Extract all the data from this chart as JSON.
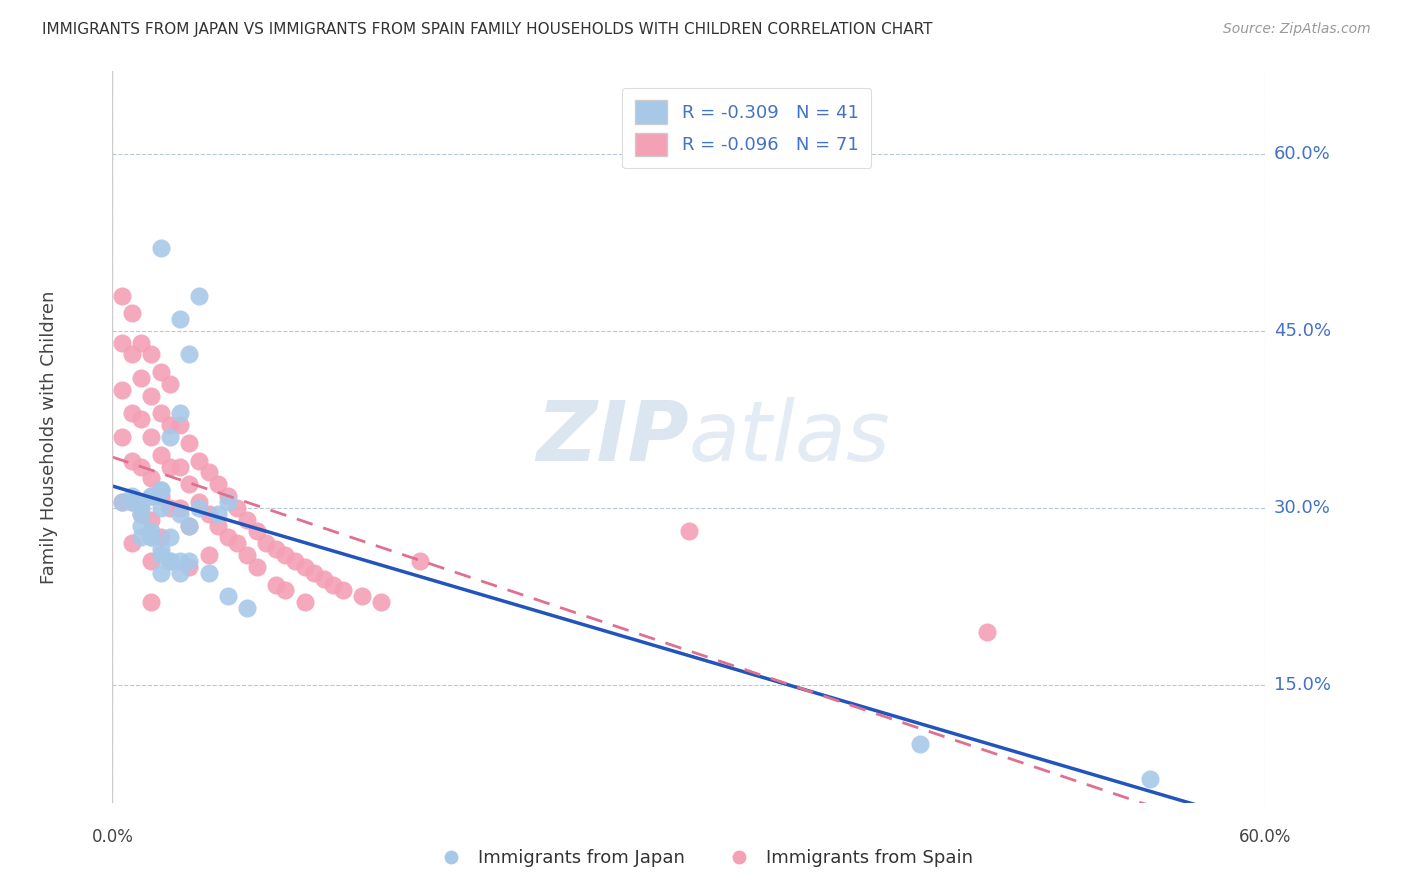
{
  "title": "IMMIGRANTS FROM JAPAN VS IMMIGRANTS FROM SPAIN FAMILY HOUSEHOLDS WITH CHILDREN CORRELATION CHART",
  "source": "Source: ZipAtlas.com",
  "ylabel": "Family Households with Children",
  "y_ticks_right": [
    "60.0%",
    "45.0%",
    "30.0%",
    "15.0%"
  ],
  "y_ticks_right_vals": [
    0.6,
    0.45,
    0.3,
    0.15
  ],
  "xlim": [
    0.0,
    0.6
  ],
  "ylim": [
    0.05,
    0.67
  ],
  "R_japan": -0.309,
  "N_japan": 41,
  "R_spain": -0.096,
  "N_spain": 71,
  "color_japan": "#a8c8e8",
  "color_spain": "#f4a0b5",
  "color_japan_line": "#2255bb",
  "color_spain_line": "#e07090",
  "background_color": "#ffffff",
  "japan_x": [
    0.015,
    0.025,
    0.035,
    0.04,
    0.045,
    0.005,
    0.01,
    0.02,
    0.025,
    0.035,
    0.015,
    0.02,
    0.03,
    0.04,
    0.045,
    0.055,
    0.06,
    0.025,
    0.03,
    0.035,
    0.015,
    0.02,
    0.025,
    0.03,
    0.04,
    0.05,
    0.06,
    0.07,
    0.02,
    0.025,
    0.01,
    0.015,
    0.015,
    0.02,
    0.025,
    0.03,
    0.035,
    0.42,
    0.54,
    0.025,
    0.035
  ],
  "japan_y": [
    0.305,
    0.52,
    0.46,
    0.43,
    0.48,
    0.305,
    0.305,
    0.31,
    0.3,
    0.295,
    0.275,
    0.28,
    0.275,
    0.285,
    0.3,
    0.295,
    0.305,
    0.315,
    0.36,
    0.38,
    0.285,
    0.275,
    0.26,
    0.255,
    0.255,
    0.245,
    0.225,
    0.215,
    0.31,
    0.315,
    0.31,
    0.3,
    0.295,
    0.275,
    0.265,
    0.255,
    0.245,
    0.1,
    0.07,
    0.245,
    0.255
  ],
  "spain_x": [
    0.005,
    0.005,
    0.005,
    0.005,
    0.01,
    0.01,
    0.01,
    0.01,
    0.01,
    0.01,
    0.015,
    0.015,
    0.015,
    0.015,
    0.015,
    0.02,
    0.02,
    0.02,
    0.02,
    0.02,
    0.02,
    0.02,
    0.025,
    0.025,
    0.025,
    0.025,
    0.025,
    0.03,
    0.03,
    0.03,
    0.03,
    0.035,
    0.035,
    0.035,
    0.04,
    0.04,
    0.04,
    0.04,
    0.045,
    0.045,
    0.05,
    0.05,
    0.05,
    0.055,
    0.055,
    0.06,
    0.06,
    0.065,
    0.065,
    0.07,
    0.07,
    0.075,
    0.075,
    0.08,
    0.085,
    0.085,
    0.09,
    0.09,
    0.095,
    0.1,
    0.1,
    0.105,
    0.11,
    0.115,
    0.12,
    0.13,
    0.14,
    0.16,
    0.3,
    0.455,
    0.005
  ],
  "spain_y": [
    0.48,
    0.44,
    0.4,
    0.36,
    0.465,
    0.43,
    0.38,
    0.34,
    0.305,
    0.27,
    0.44,
    0.41,
    0.375,
    0.335,
    0.295,
    0.43,
    0.395,
    0.36,
    0.325,
    0.29,
    0.255,
    0.22,
    0.415,
    0.38,
    0.345,
    0.31,
    0.275,
    0.405,
    0.37,
    0.335,
    0.3,
    0.37,
    0.335,
    0.3,
    0.355,
    0.32,
    0.285,
    0.25,
    0.34,
    0.305,
    0.33,
    0.295,
    0.26,
    0.32,
    0.285,
    0.31,
    0.275,
    0.3,
    0.27,
    0.29,
    0.26,
    0.28,
    0.25,
    0.27,
    0.265,
    0.235,
    0.26,
    0.23,
    0.255,
    0.25,
    0.22,
    0.245,
    0.24,
    0.235,
    0.23,
    0.225,
    0.22,
    0.255,
    0.28,
    0.195,
    0.305
  ]
}
